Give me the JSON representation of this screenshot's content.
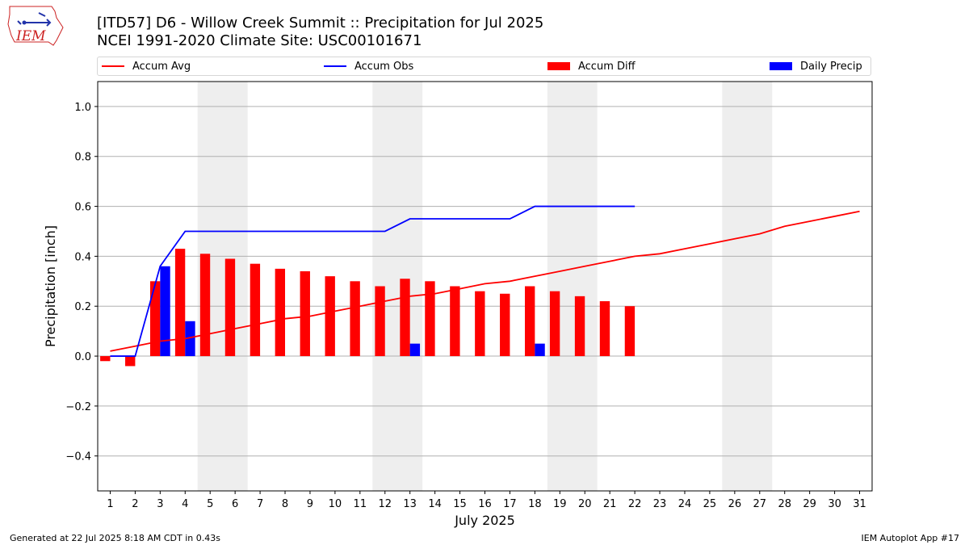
{
  "header": {
    "title_line1": "[ITD57] D6 - Willow Creek Summit  :: Precipitation for Jul 2025",
    "title_line2": "NCEI 1991-2020 Climate Site: USC00101671"
  },
  "logo": {
    "text": "IEM",
    "color": "#cc2222"
  },
  "footer": {
    "generated": "Generated at 22 Jul 2025 8:18 AM CDT in 0.43s",
    "app": "IEM Autoplot App #17"
  },
  "colors": {
    "avg": "#ff0000",
    "obs": "#0000ff",
    "diff": "#ff0000",
    "daily": "#0000ff",
    "weekend": "#eeeeee",
    "grid": "#b0b0b0"
  },
  "chart_data": {
    "type": "bar",
    "title": "[ITD57] D6 - Willow Creek Summit  :: Precipitation for Jul 2025",
    "xlabel": "July 2025",
    "ylabel": "Precipitation [inch]",
    "xlim": [
      0.5,
      31.5
    ],
    "ylim": [
      -0.54,
      1.1
    ],
    "yticks": [
      -0.4,
      -0.2,
      0.0,
      0.2,
      0.4,
      0.6,
      0.8,
      1.0
    ],
    "ytick_labels": [
      "−0.4",
      "−0.2",
      "0.0",
      "0.2",
      "0.4",
      "0.6",
      "0.8",
      "1.0"
    ],
    "days": [
      1,
      2,
      3,
      4,
      5,
      6,
      7,
      8,
      9,
      10,
      11,
      12,
      13,
      14,
      15,
      16,
      17,
      18,
      19,
      20,
      21,
      22,
      23,
      24,
      25,
      26,
      27,
      28,
      29,
      30,
      31
    ],
    "weekend_spans": [
      [
        4.5,
        6.5
      ],
      [
        11.5,
        13.5
      ],
      [
        18.5,
        20.5
      ],
      [
        25.5,
        27.5
      ]
    ],
    "legend": [
      {
        "label": "Accum Avg",
        "kind": "line",
        "series": "accum_avg"
      },
      {
        "label": "Accum Obs",
        "kind": "line",
        "series": "accum_obs"
      },
      {
        "label": "Accum Diff",
        "kind": "bar",
        "series": "accum_diff"
      },
      {
        "label": "Daily Precip",
        "kind": "bar",
        "series": "daily_precip"
      }
    ],
    "series": [
      {
        "name": "Accum Avg",
        "key": "accum_avg",
        "kind": "line",
        "x": [
          1,
          2,
          3,
          4,
          5,
          6,
          7,
          8,
          9,
          10,
          11,
          12,
          13,
          14,
          15,
          16,
          17,
          18,
          19,
          20,
          21,
          22,
          23,
          24,
          25,
          26,
          27,
          28,
          29,
          30,
          31
        ],
        "values": [
          0.02,
          0.04,
          0.06,
          0.07,
          0.09,
          0.11,
          0.13,
          0.15,
          0.16,
          0.18,
          0.2,
          0.22,
          0.24,
          0.25,
          0.27,
          0.29,
          0.3,
          0.32,
          0.34,
          0.36,
          0.38,
          0.4,
          0.41,
          0.43,
          0.45,
          0.47,
          0.49,
          0.52,
          0.54,
          0.56,
          0.58
        ]
      },
      {
        "name": "Accum Obs",
        "key": "accum_obs",
        "kind": "line",
        "x": [
          1,
          2,
          3,
          4,
          5,
          6,
          7,
          8,
          9,
          10,
          11,
          12,
          13,
          14,
          15,
          16,
          17,
          18,
          19,
          20,
          21,
          22
        ],
        "values": [
          0.0,
          0.0,
          0.36,
          0.5,
          0.5,
          0.5,
          0.5,
          0.5,
          0.5,
          0.5,
          0.5,
          0.5,
          0.55,
          0.55,
          0.55,
          0.55,
          0.55,
          0.6,
          0.6,
          0.6,
          0.6,
          0.6
        ]
      },
      {
        "name": "Accum Diff",
        "key": "accum_diff",
        "kind": "bar",
        "x": [
          1,
          2,
          3,
          4,
          5,
          6,
          7,
          8,
          9,
          10,
          11,
          12,
          13,
          14,
          15,
          16,
          17,
          18,
          19,
          20,
          21,
          22
        ],
        "values": [
          -0.02,
          -0.04,
          0.3,
          0.43,
          0.41,
          0.39,
          0.37,
          0.35,
          0.34,
          0.32,
          0.3,
          0.28,
          0.31,
          0.3,
          0.28,
          0.26,
          0.25,
          0.28,
          0.26,
          0.24,
          0.22,
          0.2
        ]
      },
      {
        "name": "Daily Precip",
        "key": "daily_precip",
        "kind": "bar",
        "x": [
          3,
          4,
          13,
          18
        ],
        "values": [
          0.36,
          0.14,
          0.05,
          0.05
        ]
      }
    ]
  }
}
